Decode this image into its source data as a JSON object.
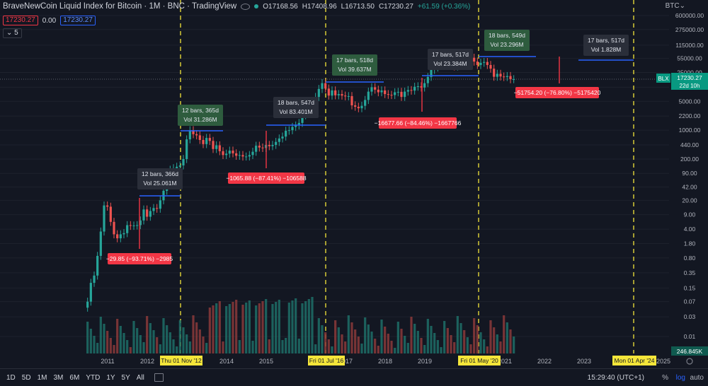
{
  "header": {
    "title": "BraveNewCoin Liquid Index for Bitcoin · 1M · BNC · TradingView",
    "open": "O17168.56",
    "high": "H17408.96",
    "low": "L16713.50",
    "close": "C17230.27",
    "change": "+61.59 (+0.36%)"
  },
  "price_boxes": {
    "sell": "17230.27",
    "spread": "0.00",
    "buy": "17230.27"
  },
  "indicator_count": "5",
  "currency": "BTC",
  "bottom_bar": {
    "timeframes": [
      "1D",
      "5D",
      "1M",
      "3M",
      "6M",
      "YTD",
      "1Y",
      "5Y",
      "All"
    ],
    "clock": "15:29:40 (UTC+1)",
    "percent": "%",
    "log": "log",
    "auto": "auto"
  },
  "colors": {
    "up": "#26a69a",
    "down": "#ef5350",
    "bg": "#131722",
    "grid": "#2a2e39",
    "vline": "#f5e63a",
    "range": "#2962ff",
    "gain_box": "#2e5c3e",
    "info_box": "#2a2e39",
    "loss_box": "#f23645"
  },
  "chart_data": {
    "type": "candlestick",
    "y_scale": "log",
    "y_ticks": [
      "600000.00",
      "275000.00",
      "115000.00",
      "55000.00",
      "25000.00",
      "11000.00",
      "5000.00",
      "2200.00",
      "1000.00",
      "440.00",
      "200.00",
      "90.00",
      "42.00",
      "20.00",
      "9.00",
      "4.00",
      "1.80",
      "0.80",
      "0.35",
      "0.15",
      "0.07",
      "0.03",
      "0.01"
    ],
    "x_ticks": [
      "2011",
      "2012",
      "2014",
      "2015",
      "2017",
      "2018",
      "2019",
      "2021",
      "2022",
      "2023",
      "2025"
    ],
    "x_tick_labels_highlight": [
      "Thu 01 Nov '12",
      "Fri 01 Jul '16",
      "Fri 01 May '20",
      "Mon 01 Apr '24"
    ],
    "last_price_label": {
      "symbol": "BLX",
      "value": "17230.27",
      "countdown": "22d 10h"
    },
    "volume_label": "246.845K",
    "range_boxes": [
      {
        "bars": "12 bars, 366d",
        "vol": "Vol 25.061M"
      },
      {
        "bars": "12 bars, 365d",
        "vol": "Vol 31.286M"
      },
      {
        "bars": "18 bars, 547d",
        "vol": "Vol 83.401M"
      },
      {
        "bars": "17 bars, 518d",
        "vol": "Vol 39.637M"
      },
      {
        "bars": "17 bars, 517d",
        "vol": "Vol 23.384M"
      },
      {
        "bars": "18 bars, 549d",
        "vol": "Vol 23.296M"
      },
      {
        "bars": "17 bars, 517d",
        "vol": "Vol 1.828M"
      }
    ],
    "drawdowns": [
      {
        "label": "−29.85 (−93.71%) −2985"
      },
      {
        "label": "−1065.88 (−87.41%) −106588"
      },
      {
        "label": "−16677.66 (−84.46%) −1667766"
      },
      {
        "label": "−51754.20 (−76.80%) −5175420"
      }
    ],
    "closes": [
      0.05,
      0.07,
      0.2,
      0.3,
      0.9,
      3.5,
      15,
      14,
      6,
      3,
      2.4,
      3,
      3.2,
      5,
      4.8,
      4.9,
      5,
      6.5,
      12,
      8,
      11,
      13,
      12.5,
      20,
      34,
      90,
      110,
      120,
      130,
      140,
      200,
      600,
      1000,
      800,
      750,
      580,
      460,
      650,
      550,
      350,
      430,
      310,
      250,
      270,
      320,
      275,
      240,
      250,
      230,
      230,
      250,
      300,
      420,
      380,
      370,
      440,
      410,
      440,
      520,
      630,
      700,
      970,
      1000,
      1200,
      1300,
      1500,
      2300,
      2700,
      4300,
      4800,
      6400,
      10000,
      13800,
      10200,
      6900,
      9200,
      7000,
      7500,
      6900,
      6600,
      6700,
      4000,
      3700,
      3400,
      3900,
      5400,
      8600,
      11000,
      9600,
      8300,
      9200,
      7500,
      7200,
      7100,
      8300,
      8500,
      6400,
      8600,
      9400,
      9100,
      11300,
      11600,
      10800,
      13800,
      19500,
      29000,
      33000,
      45000,
      58000,
      59000,
      57000,
      37000,
      35000,
      42000,
      47000,
      43000,
      61000,
      57000,
      46000,
      38000,
      43000,
      45000,
      38000,
      31000,
      19700,
      23300,
      20000,
      19400,
      20500,
      17200,
      17230
    ]
  }
}
